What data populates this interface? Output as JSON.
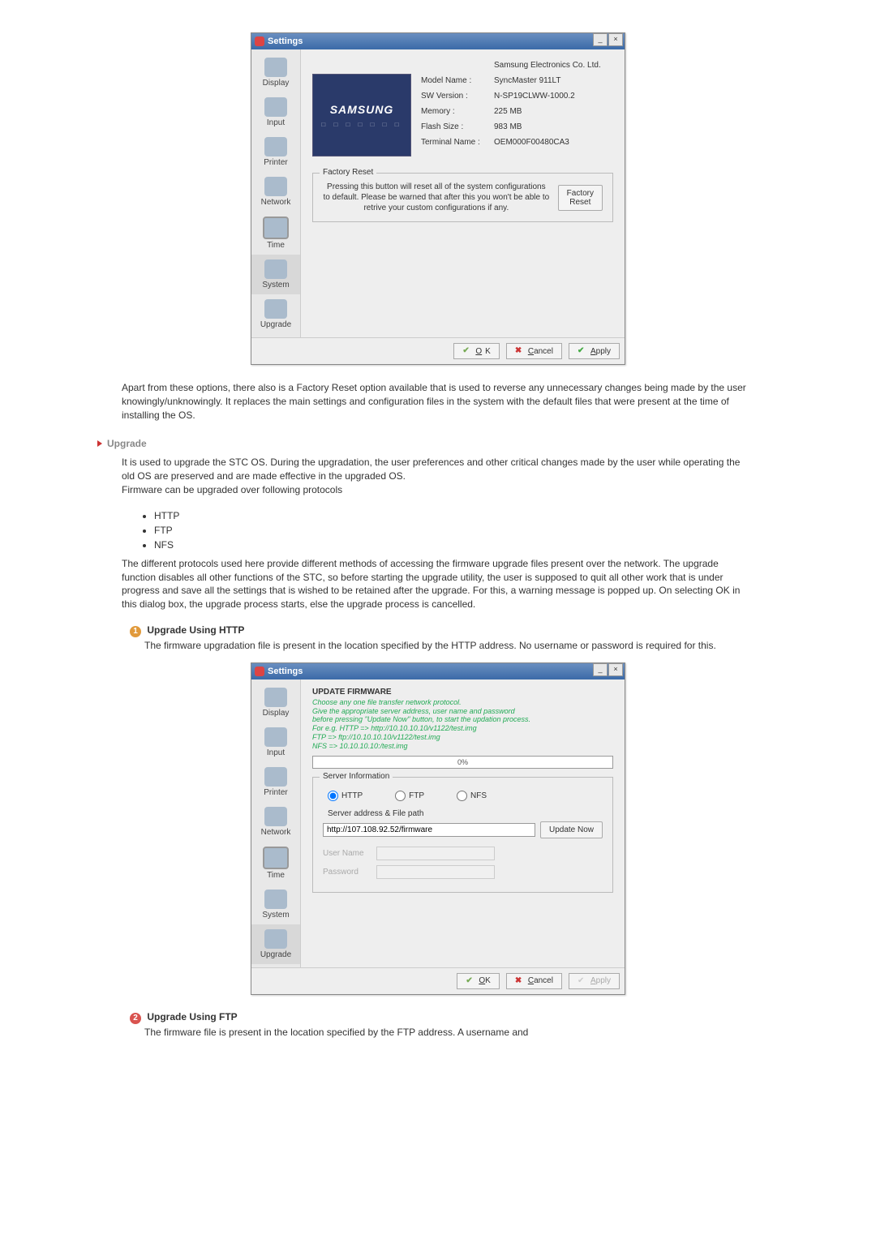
{
  "dialog1": {
    "title": "Settings",
    "sidebar": [
      {
        "label": "Display",
        "iconClass": "sb-icon-monitor"
      },
      {
        "label": "Input",
        "iconClass": "sb-icon-input"
      },
      {
        "label": "Printer",
        "iconClass": "sb-icon-printer"
      },
      {
        "label": "Network",
        "iconClass": "sb-icon-network"
      },
      {
        "label": "Time",
        "iconClass": "sb-icon-time"
      },
      {
        "label": "System",
        "iconClass": "sb-icon-system"
      },
      {
        "label": "Upgrade",
        "iconClass": "sb-icon-upgrade"
      }
    ],
    "brand": "SAMSUNG",
    "company": "Samsung Electronics Co. Ltd.",
    "specs": [
      {
        "label": "Model Name :",
        "value": "SyncMaster 911LT"
      },
      {
        "label": "SW Version :",
        "value": "N-SP19CLWW-1000.2"
      },
      {
        "label": "Memory :",
        "value": "225 MB"
      },
      {
        "label": "Flash Size :",
        "value": "983 MB"
      },
      {
        "label": "Terminal Name :",
        "value": "OEM000F00480CA3"
      }
    ],
    "factoryReset": {
      "legend": "Factory Reset",
      "text": "Pressing this button will reset all of the system configurations to default. Please be warned that after this you won't be able to retrive your custom configurations if any.",
      "button": "Factory\nReset"
    },
    "footer": {
      "ok": "OK",
      "cancel": "Cancel",
      "apply": "Apply"
    }
  },
  "para1": "Apart from these options, there also is a Factory Reset option available that is used to reverse any unnecessary changes being made by the user knowingly/unknowingly. It replaces the main settings and configuration files in the system with the default files that were present at the time of installing the OS.",
  "section": {
    "upgrade": "Upgrade"
  },
  "para2a": "It is used to upgrade the STC OS. During the upgradation, the user preferences and other  critical changes made by the user while operating the old OS are preserved and are made effective in the upgraded OS.",
  "para2b": "Firmware can be upgraded over following protocols",
  "protocols": [
    "HTTP",
    "FTP",
    "NFS"
  ],
  "para3": "The different protocols used here provide different methods of accessing the firmware upgrade files present over the network. The upgrade function disables all other functions of the STC, so before starting the upgrade utility, the user is supposed to quit all other work that is under progress and save all the settings that is wished to be retained after the upgrade. For this, a warning message is popped up. On selecting OK in this dialog box, the upgrade process starts, else the upgrade process is cancelled.",
  "step1": {
    "num": "1",
    "title": "Upgrade Using HTTP",
    "body": "The firmware upgradation file is present in the location specified by the HTTP address. No username or password is required for this."
  },
  "dialog2": {
    "title": "Settings",
    "sidebar": [
      {
        "label": "Display",
        "iconClass": "sb-icon-monitor"
      },
      {
        "label": "Input",
        "iconClass": "sb-icon-input"
      },
      {
        "label": "Printer",
        "iconClass": "sb-icon-printer"
      },
      {
        "label": "Network",
        "iconClass": "sb-icon-network"
      },
      {
        "label": "Time",
        "iconClass": "sb-icon-time"
      },
      {
        "label": "System",
        "iconClass": "sb-icon-system"
      },
      {
        "label": "Upgrade",
        "iconClass": "sb-icon-upgrade"
      }
    ],
    "updateTitle": "UPDATE FIRMWARE",
    "instr1": "Choose any one file transfer network protocol.",
    "instr2": "Give the appropriate server address, user name and password",
    "instr3": "before pressing \"Update Now\" button, to start the updation process.",
    "instr4": "For e.g.   HTTP => http://10.10.10.10/v1122/test.img",
    "instr5": "              FTP => ftp://10.10.10.10/v1122/test.img",
    "instr6": "              NFS => 10.10.10.10:/test.img",
    "progress": "0%",
    "serverInfoLegend": "Server Information",
    "radios": {
      "http": "HTTP",
      "ftp": "FTP",
      "nfs": "NFS"
    },
    "pathLabel": "Server address & File path",
    "pathValue": "http://107.108.92.52/firmware",
    "updateBtn": "Update Now",
    "userLabel": "User Name",
    "passLabel": "Password",
    "footer": {
      "ok": "OK",
      "cancel": "Cancel",
      "apply": "Apply"
    }
  },
  "step2": {
    "num": "2",
    "title": "Upgrade Using FTP",
    "body": "The firmware file is present in the location specified by the FTP address. A username and"
  }
}
